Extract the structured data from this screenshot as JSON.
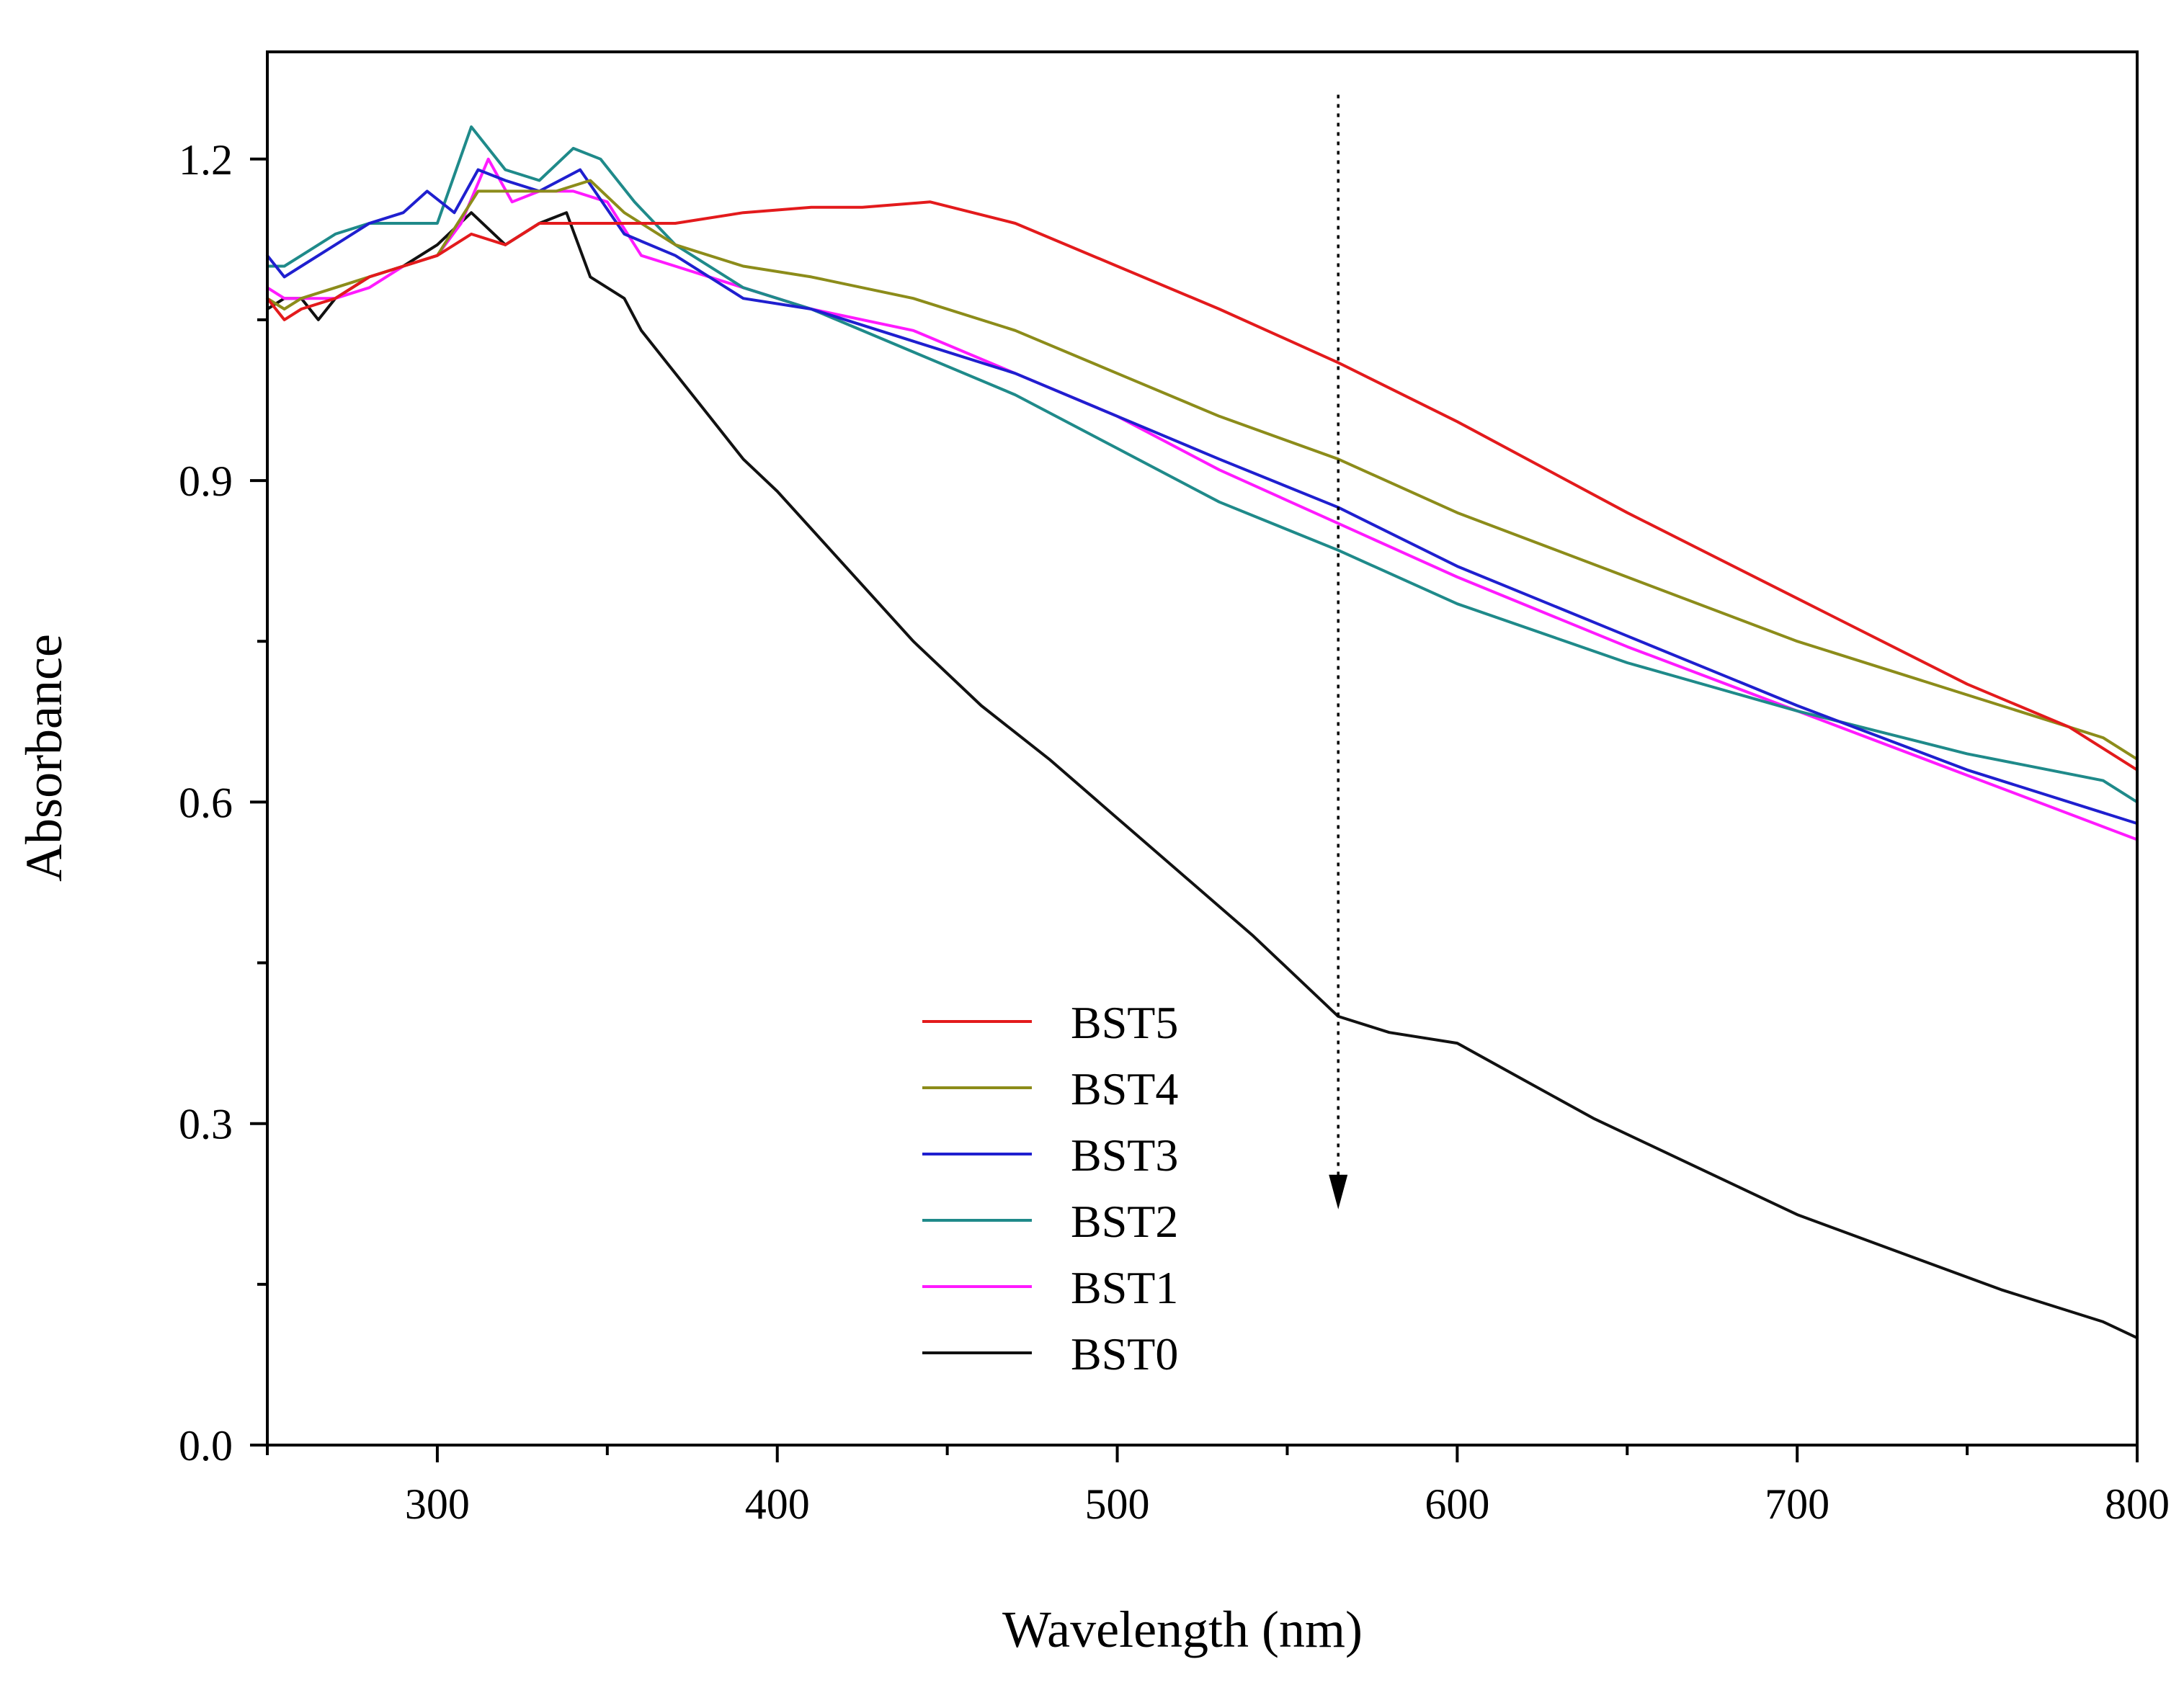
{
  "chart_data": {
    "type": "line",
    "title": "",
    "xlabel": "Wavelength (nm)",
    "ylabel": "Absorbance",
    "xlim": [
      250,
      800
    ],
    "ylim": [
      0.0,
      1.3
    ],
    "x_ticks": [
      300,
      400,
      500,
      600,
      700,
      800
    ],
    "x_tick_labels": [
      "300",
      "400",
      "500",
      "600",
      "700",
      "800"
    ],
    "y_ticks": [
      0.0,
      0.3,
      0.6,
      0.9,
      1.2
    ],
    "y_tick_labels": [
      "0.0",
      "0.3",
      "0.6",
      "0.9",
      "1.2"
    ],
    "grid": false,
    "legend_position": "lower-center",
    "annotation": {
      "type": "dotted-arrow",
      "x": 565,
      "y_start": 1.26,
      "y_end": 0.22,
      "meaning": "absorbance decreasing from BST5 to BST0"
    },
    "series": [
      {
        "name": "BST5",
        "color": "#e31a1c",
        "points": [
          [
            250,
            1.07
          ],
          [
            255,
            1.05
          ],
          [
            260,
            1.06
          ],
          [
            270,
            1.07
          ],
          [
            280,
            1.09
          ],
          [
            290,
            1.1
          ],
          [
            300,
            1.11
          ],
          [
            310,
            1.13
          ],
          [
            320,
            1.12
          ],
          [
            330,
            1.14
          ],
          [
            340,
            1.14
          ],
          [
            350,
            1.14
          ],
          [
            370,
            1.14
          ],
          [
            390,
            1.15
          ],
          [
            410,
            1.155
          ],
          [
            425,
            1.155
          ],
          [
            445,
            1.16
          ],
          [
            470,
            1.14
          ],
          [
            500,
            1.1
          ],
          [
            530,
            1.06
          ],
          [
            565,
            1.01
          ],
          [
            600,
            0.955
          ],
          [
            650,
            0.87
          ],
          [
            700,
            0.79
          ],
          [
            750,
            0.71
          ],
          [
            780,
            0.67
          ],
          [
            800,
            0.63
          ]
        ]
      },
      {
        "name": "BST4",
        "color": "#8c8c1a",
        "points": [
          [
            250,
            1.07
          ],
          [
            255,
            1.06
          ],
          [
            260,
            1.07
          ],
          [
            270,
            1.08
          ],
          [
            280,
            1.09
          ],
          [
            290,
            1.1
          ],
          [
            300,
            1.11
          ],
          [
            312,
            1.17
          ],
          [
            320,
            1.17
          ],
          [
            335,
            1.17
          ],
          [
            345,
            1.18
          ],
          [
            355,
            1.15
          ],
          [
            370,
            1.12
          ],
          [
            390,
            1.1
          ],
          [
            410,
            1.09
          ],
          [
            440,
            1.07
          ],
          [
            470,
            1.04
          ],
          [
            500,
            1.0
          ],
          [
            530,
            0.96
          ],
          [
            565,
            0.92
          ],
          [
            600,
            0.87
          ],
          [
            650,
            0.81
          ],
          [
            700,
            0.75
          ],
          [
            750,
            0.7
          ],
          [
            790,
            0.66
          ],
          [
            800,
            0.64
          ]
        ]
      },
      {
        "name": "BST3",
        "color": "#1f1fcf",
        "points": [
          [
            250,
            1.11
          ],
          [
            255,
            1.09
          ],
          [
            260,
            1.1
          ],
          [
            270,
            1.12
          ],
          [
            280,
            1.14
          ],
          [
            290,
            1.15
          ],
          [
            297,
            1.17
          ],
          [
            305,
            1.15
          ],
          [
            312,
            1.19
          ],
          [
            320,
            1.18
          ],
          [
            330,
            1.17
          ],
          [
            342,
            1.19
          ],
          [
            355,
            1.13
          ],
          [
            370,
            1.11
          ],
          [
            390,
            1.07
          ],
          [
            410,
            1.06
          ],
          [
            440,
            1.03
          ],
          [
            470,
            1.0
          ],
          [
            500,
            0.96
          ],
          [
            530,
            0.92
          ],
          [
            565,
            0.875
          ],
          [
            600,
            0.82
          ],
          [
            650,
            0.755
          ],
          [
            700,
            0.69
          ],
          [
            750,
            0.63
          ],
          [
            800,
            0.58
          ]
        ]
      },
      {
        "name": "BST2",
        "color": "#1f8a8a",
        "points": [
          [
            250,
            1.1
          ],
          [
            255,
            1.1
          ],
          [
            260,
            1.11
          ],
          [
            270,
            1.13
          ],
          [
            280,
            1.14
          ],
          [
            290,
            1.14
          ],
          [
            300,
            1.14
          ],
          [
            310,
            1.23
          ],
          [
            320,
            1.19
          ],
          [
            330,
            1.18
          ],
          [
            340,
            1.21
          ],
          [
            348,
            1.2
          ],
          [
            358,
            1.16
          ],
          [
            370,
            1.12
          ],
          [
            390,
            1.08
          ],
          [
            410,
            1.06
          ],
          [
            440,
            1.02
          ],
          [
            470,
            0.98
          ],
          [
            500,
            0.93
          ],
          [
            530,
            0.88
          ],
          [
            565,
            0.835
          ],
          [
            600,
            0.785
          ],
          [
            650,
            0.73
          ],
          [
            700,
            0.685
          ],
          [
            750,
            0.645
          ],
          [
            790,
            0.62
          ],
          [
            800,
            0.6
          ]
        ]
      },
      {
        "name": "BST1",
        "color": "#ff1aff",
        "points": [
          [
            250,
            1.08
          ],
          [
            255,
            1.07
          ],
          [
            260,
            1.07
          ],
          [
            270,
            1.07
          ],
          [
            280,
            1.08
          ],
          [
            290,
            1.1
          ],
          [
            300,
            1.11
          ],
          [
            307,
            1.14
          ],
          [
            315,
            1.2
          ],
          [
            322,
            1.16
          ],
          [
            330,
            1.17
          ],
          [
            340,
            1.17
          ],
          [
            350,
            1.16
          ],
          [
            360,
            1.11
          ],
          [
            370,
            1.1
          ],
          [
            390,
            1.08
          ],
          [
            410,
            1.06
          ],
          [
            440,
            1.04
          ],
          [
            470,
            1.0
          ],
          [
            500,
            0.96
          ],
          [
            530,
            0.91
          ],
          [
            565,
            0.86
          ],
          [
            600,
            0.81
          ],
          [
            650,
            0.745
          ],
          [
            700,
            0.685
          ],
          [
            750,
            0.625
          ],
          [
            800,
            0.565
          ]
        ]
      },
      {
        "name": "BST0",
        "color": "#111111",
        "points": [
          [
            250,
            1.06
          ],
          [
            255,
            1.07
          ],
          [
            260,
            1.07
          ],
          [
            265,
            1.05
          ],
          [
            270,
            1.07
          ],
          [
            280,
            1.09
          ],
          [
            290,
            1.1
          ],
          [
            300,
            1.12
          ],
          [
            310,
            1.15
          ],
          [
            320,
            1.12
          ],
          [
            330,
            1.14
          ],
          [
            338,
            1.15
          ],
          [
            345,
            1.09
          ],
          [
            355,
            1.07
          ],
          [
            360,
            1.04
          ],
          [
            370,
            1.0
          ],
          [
            380,
            0.96
          ],
          [
            390,
            0.92
          ],
          [
            400,
            0.89
          ],
          [
            420,
            0.82
          ],
          [
            440,
            0.75
          ],
          [
            460,
            0.69
          ],
          [
            480,
            0.64
          ],
          [
            500,
            0.585
          ],
          [
            520,
            0.53
          ],
          [
            540,
            0.475
          ],
          [
            565,
            0.4
          ],
          [
            580,
            0.385
          ],
          [
            600,
            0.375
          ],
          [
            620,
            0.34
          ],
          [
            640,
            0.305
          ],
          [
            670,
            0.26
          ],
          [
            700,
            0.215
          ],
          [
            730,
            0.18
          ],
          [
            760,
            0.145
          ],
          [
            790,
            0.115
          ],
          [
            800,
            0.1
          ]
        ]
      }
    ]
  }
}
